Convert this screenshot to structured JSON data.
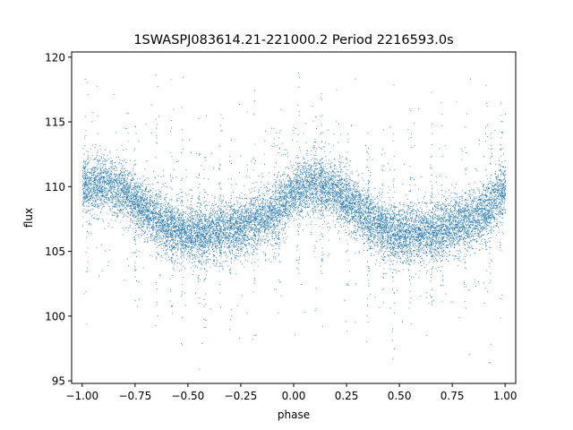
{
  "chart_data": {
    "type": "scatter",
    "title": "1SWASPJ083614.21-221000.2 Period 2216593.0s",
    "xlabel": "phase",
    "ylabel": "flux",
    "xlim": [
      -1.05,
      1.05
    ],
    "ylim": [
      94.8,
      120.4
    ],
    "xticks": [
      -1.0,
      -0.75,
      -0.5,
      -0.25,
      0.0,
      0.25,
      0.5,
      0.75,
      1.0
    ],
    "xtick_labels": [
      "−1.00",
      "−0.75",
      "−0.50",
      "−0.25",
      "0.00",
      "0.25",
      "0.50",
      "0.75",
      "1.00"
    ],
    "yticks": [
      95,
      100,
      105,
      110,
      115,
      120
    ],
    "ytick_labels": [
      "95",
      "100",
      "105",
      "110",
      "115",
      "120"
    ],
    "grid": false,
    "marker_color": "#1f77b4",
    "light_curve_profile": {
      "x": [
        -1.0,
        -0.9,
        -0.8,
        -0.7,
        -0.6,
        -0.5,
        -0.4,
        -0.3,
        -0.2,
        -0.1,
        0.0,
        0.1,
        0.2,
        0.3,
        0.4,
        0.5,
        0.6,
        0.7,
        0.8,
        0.9,
        1.0
      ],
      "y": [
        110.0,
        110.3,
        109.6,
        108.2,
        107.0,
        106.3,
        106.4,
        106.8,
        107.2,
        107.9,
        109.6,
        110.3,
        109.6,
        108.2,
        107.0,
        106.3,
        106.4,
        106.8,
        107.2,
        107.9,
        110.0
      ],
      "scatter_sd": 1.1
    },
    "outlier_columns": [
      -0.98,
      -0.75,
      -0.65,
      -0.58,
      -0.53,
      -0.45,
      -0.42,
      -0.35,
      -0.3,
      -0.19,
      -0.09,
      -0.07,
      0.02,
      0.1,
      0.13,
      0.25,
      0.35,
      0.42,
      0.47,
      0.55,
      0.65,
      0.7,
      0.81,
      0.91,
      0.93,
      0.98
    ]
  }
}
